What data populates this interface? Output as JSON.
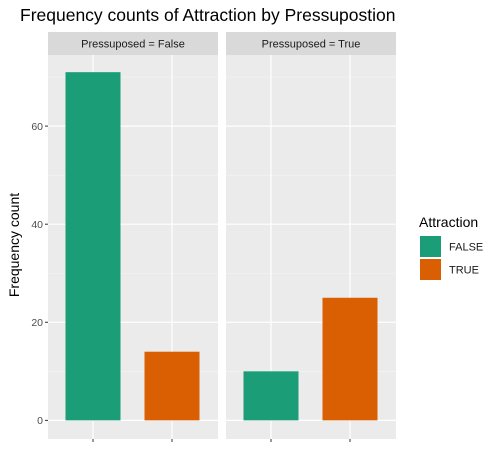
{
  "chart_data": {
    "type": "bar",
    "title": "Frequency counts of Attraction by Pressupostion",
    "ylabel": "Frequency count",
    "xlabel": "",
    "ylim": [
      0,
      74
    ],
    "y_ticks": [
      0,
      20,
      40,
      60
    ],
    "grid": true,
    "legend_position": "right",
    "legend_title": "Attraction",
    "series": [
      {
        "name": "FALSE",
        "color": "#1B9E77"
      },
      {
        "name": "TRUE",
        "color": "#D95F02"
      }
    ],
    "facets": [
      {
        "label": "Pressuposed = False",
        "values": {
          "FALSE": 71,
          "TRUE": 14
        }
      },
      {
        "label": "Pressuposed  = True",
        "values": {
          "FALSE": 10,
          "TRUE": 25
        }
      }
    ]
  }
}
